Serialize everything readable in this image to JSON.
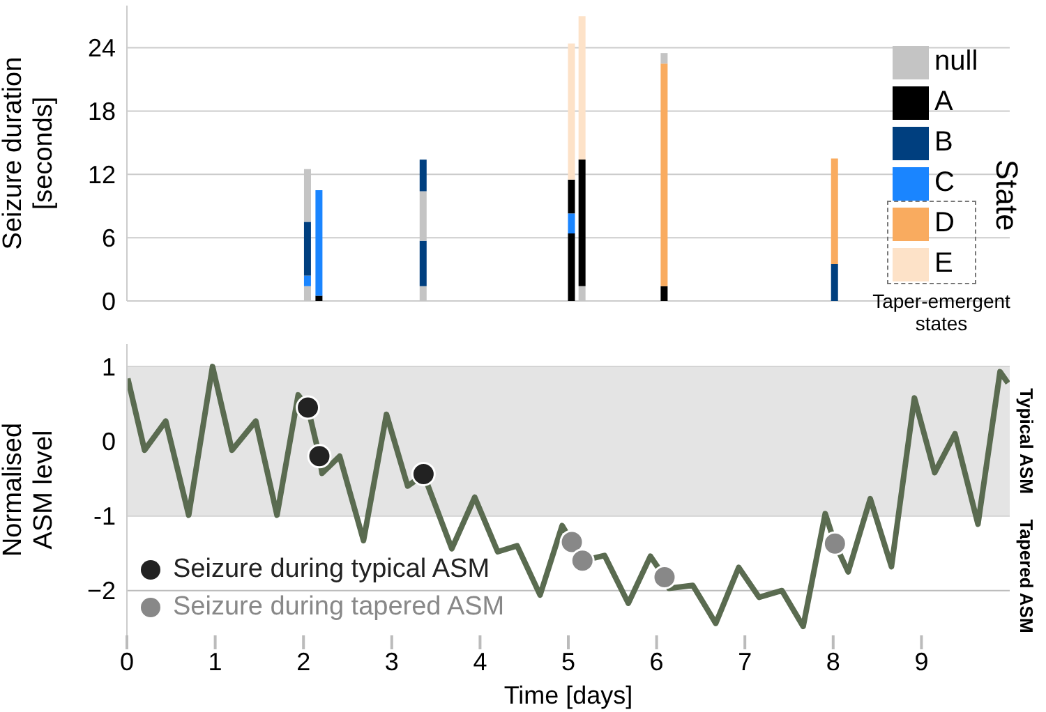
{
  "chart_data": [
    {
      "type": "bar",
      "stacked": true,
      "ylabel": "Seizure duration\n[seconds]",
      "legend_title": "State",
      "annotations": [
        "Taper-emergent states"
      ],
      "x": [
        2.05,
        2.18,
        3.36,
        5.04,
        5.16,
        6.09,
        8.02
      ],
      "xlim": [
        0,
        10
      ],
      "ylim": [
        0,
        28
      ],
      "yticks": [
        0,
        6,
        12,
        18,
        24
      ],
      "grid": "y",
      "tick_labels": "y",
      "legend": "right",
      "series": [
        {
          "name": "null",
          "color": "#c4c4c4",
          "values": [
            1.4,
            null,
            1.4,
            null,
            1.4,
            null,
            null
          ]
        },
        {
          "name": "A",
          "color": "#000000",
          "values": [
            null,
            0.5,
            null,
            6.4,
            12.0,
            1.4,
            null
          ]
        },
        {
          "name": "B",
          "color": "#003f7f",
          "values": [
            null,
            null,
            4.3,
            null,
            null,
            null,
            3.5
          ]
        },
        {
          "name": "C",
          "color": "#1a85ff",
          "values": [
            1.0,
            10.0,
            null,
            1.9,
            null,
            null,
            null
          ]
        },
        {
          "color": "#003f7f",
          "values": [
            5.1,
            null,
            null,
            null,
            null,
            null,
            null
          ]
        },
        {
          "color": "#c4c4c4",
          "values": [
            5.0,
            null,
            4.7,
            null,
            null,
            null,
            null
          ]
        },
        {
          "color": "#000000",
          "values": [
            null,
            null,
            null,
            3.2,
            null,
            null,
            null
          ]
        },
        {
          "color": "#003f7f",
          "values": [
            null,
            null,
            3.0,
            null,
            null,
            null,
            null
          ]
        },
        {
          "name": "D",
          "color": "#f9ab5f",
          "values": [
            null,
            null,
            null,
            null,
            null,
            21.1,
            10.0
          ]
        },
        {
          "name": "E",
          "color": "#fde2c8",
          "values": [
            null,
            null,
            null,
            12.9,
            13.6,
            null,
            null
          ]
        },
        {
          "color": "#c4c4c4",
          "values": [
            null,
            null,
            null,
            null,
            null,
            1.0,
            null
          ]
        }
      ]
    },
    {
      "type": "line",
      "ylabel": "Normalised\nASM level",
      "xlabel": "Time [days]",
      "xlim": [
        0,
        10
      ],
      "xticks": [
        0,
        1,
        2,
        3,
        4,
        5,
        6,
        7,
        8,
        9
      ],
      "ylim": [
        -2.6,
        1.3
      ],
      "yticks": [
        {
          "value": -2,
          "label": "−2"
        },
        -1,
        0,
        1
      ],
      "grid": "y",
      "legend": "bottom left",
      "bands": [
        {
          "axis": "y",
          "from": -1,
          "to": 1,
          "label": "Typical ASM",
          "color": "#e4e4e4"
        }
      ],
      "annotations": [
        "Tapered ASM"
      ],
      "series": [
        {
          "color": "#5a6b50",
          "x": [
            0.01,
            0.2,
            0.44,
            0.7,
            0.97,
            1.19,
            1.46,
            1.7,
            1.94,
            2.05,
            2.18,
            2.21,
            2.41,
            2.68,
            2.94,
            3.18,
            3.3,
            3.36,
            3.68,
            3.94,
            4.2,
            4.42,
            4.68,
            4.93,
            5.04,
            5.16,
            5.41,
            5.68,
            5.93,
            6.09,
            6.14,
            6.41,
            6.67,
            6.93,
            7.16,
            7.42,
            7.66,
            7.91,
            8.02,
            8.17,
            8.42,
            8.66,
            8.92,
            9.15,
            9.38,
            9.64,
            9.89,
            9.98
          ],
          "values": [
            0.84,
            -0.12,
            0.27,
            -0.99,
            1.0,
            -0.12,
            0.27,
            -0.99,
            0.62,
            0.45,
            -0.2,
            -0.43,
            -0.2,
            -1.33,
            0.36,
            -0.6,
            -0.5,
            -0.44,
            -1.44,
            -0.75,
            -1.48,
            -1.4,
            -2.06,
            -1.13,
            -1.35,
            -1.6,
            -1.53,
            -2.17,
            -1.54,
            -1.82,
            -1.97,
            -1.93,
            -2.44,
            -1.69,
            -2.09,
            -2.0,
            -2.48,
            -0.97,
            -1.37,
            -1.75,
            -0.77,
            -1.68,
            0.58,
            -0.42,
            0.1,
            -1.11,
            0.93,
            0.78
          ]
        },
        {
          "type": "scatter",
          "name": "Seizure during typical ASM",
          "color": "#222222",
          "marker": "circle",
          "x": [
            2.05,
            2.18,
            3.36
          ],
          "values": [
            0.45,
            -0.2,
            -0.44
          ]
        },
        {
          "type": "scatter",
          "name": "Seizure during tapered ASM",
          "color": "#888888",
          "marker": "circle",
          "x": [
            5.04,
            5.16,
            6.09,
            8.02
          ],
          "values": [
            -1.35,
            -1.6,
            -1.82,
            -1.37
          ]
        }
      ]
    }
  ]
}
